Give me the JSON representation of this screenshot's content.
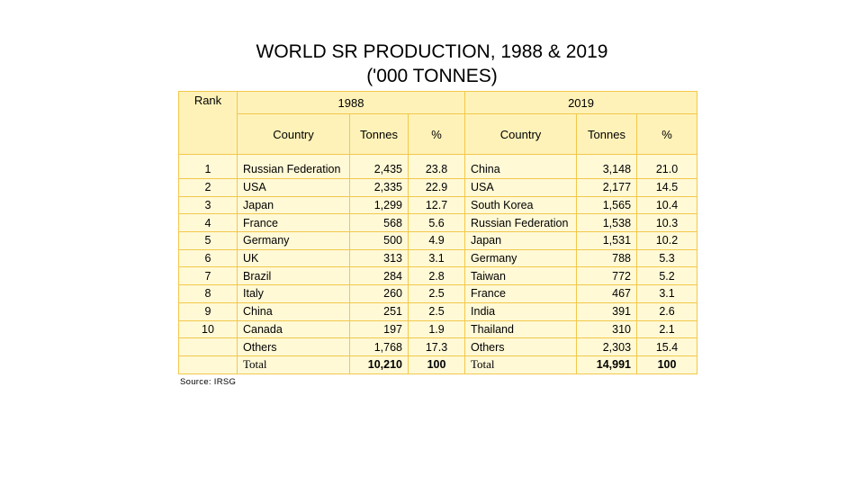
{
  "title": {
    "line1": "WORLD SR PRODUCTION, 1988 & 2019",
    "line2": "('000 TONNES)"
  },
  "table": {
    "header": {
      "rank": "Rank",
      "year1": "1988",
      "year2": "2019",
      "country": "Country",
      "tonnes": "Tonnes",
      "percent": "%"
    },
    "rows": [
      {
        "rank": "1",
        "c1988": "Russian Federation",
        "t1988": "2,435",
        "p1988": "23.8",
        "c2019": "China",
        "t2019": "3,148",
        "p2019": "21.0"
      },
      {
        "rank": "2",
        "c1988": "USA",
        "t1988": "2,335",
        "p1988": "22.9",
        "c2019": "USA",
        "t2019": "2,177",
        "p2019": "14.5"
      },
      {
        "rank": "3",
        "c1988": "Japan",
        "t1988": "1,299",
        "p1988": "12.7",
        "c2019": "South Korea",
        "t2019": "1,565",
        "p2019": "10.4"
      },
      {
        "rank": "4",
        "c1988": "France",
        "t1988": "568",
        "p1988": "5.6",
        "c2019": "Russian Federation",
        "t2019": "1,538",
        "p2019": "10.3"
      },
      {
        "rank": "5",
        "c1988": "Germany",
        "t1988": "500",
        "p1988": "4.9",
        "c2019": "Japan",
        "t2019": "1,531",
        "p2019": "10.2"
      },
      {
        "rank": "6",
        "c1988": "UK",
        "t1988": "313",
        "p1988": "3.1",
        "c2019": "Germany",
        "t2019": "788",
        "p2019": "5.3"
      },
      {
        "rank": "7",
        "c1988": "Brazil",
        "t1988": "284",
        "p1988": "2.8",
        "c2019": "Taiwan",
        "t2019": "772",
        "p2019": "5.2"
      },
      {
        "rank": "8",
        "c1988": "Italy",
        "t1988": "260",
        "p1988": "2.5",
        "c2019": "France",
        "t2019": "467",
        "p2019": "3.1"
      },
      {
        "rank": "9",
        "c1988": "China",
        "t1988": "251",
        "p1988": "2.5",
        "c2019": "India",
        "t2019": "391",
        "p2019": "2.6"
      },
      {
        "rank": "10",
        "c1988": "Canada",
        "t1988": "197",
        "p1988": "1.9",
        "c2019": "Thailand",
        "t2019": "310",
        "p2019": "2.1"
      },
      {
        "rank": "",
        "c1988": "Others",
        "t1988": "1,768",
        "p1988": "17.3",
        "c2019": "Others",
        "t2019": "2,303",
        "p2019": "15.4"
      }
    ],
    "total": {
      "label": "Total",
      "t1988": "10,210",
      "p1988": "100",
      "t2019": "14,991",
      "p2019": "100"
    }
  },
  "source": "Source: IRSG",
  "colors": {
    "table_fill": "#fff9d6",
    "header_fill": "#fff2b8",
    "border": "#f2c84b"
  }
}
